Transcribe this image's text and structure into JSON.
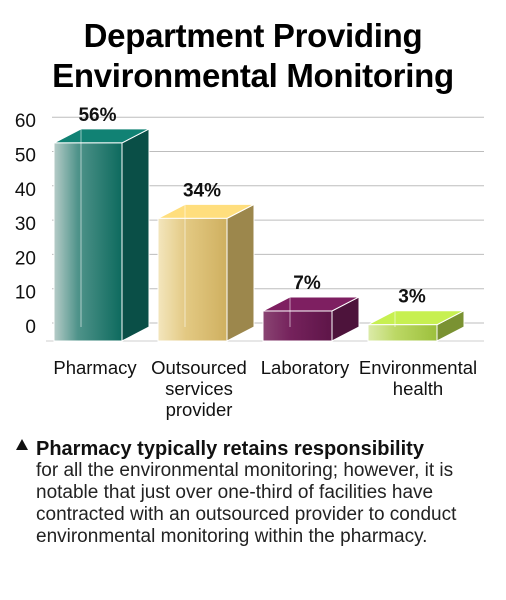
{
  "chart_data": {
    "type": "bar",
    "title": "Department Providing Environmental Monitoring",
    "title_lines": [
      "Department Providing",
      "Environmental Monitoring"
    ],
    "categories": [
      [
        "Pharmacy"
      ],
      [
        "Outsourced",
        "services",
        "provider"
      ],
      [
        "Laboratory"
      ],
      [
        "Environmental",
        "health"
      ]
    ],
    "values": [
      56,
      34,
      7,
      3
    ],
    "value_labels": [
      "56%",
      "34%",
      "7%",
      "3%"
    ],
    "ylim": [
      0,
      60
    ],
    "yticks": [
      0,
      10,
      20,
      30,
      40,
      50,
      60
    ],
    "grid": true,
    "style": "3d",
    "colors": [
      "#0e6e62",
      "#d8bc6a",
      "#6b1a52",
      "#a9cb45"
    ]
  },
  "note": {
    "lead": "Pharmacy typically retains responsibility",
    "text": "for all the environmental monitoring; however, it is notable that just over one-third of facilities have contracted with an outsourced provider to conduct environmental monitoring within the pharmacy."
  }
}
